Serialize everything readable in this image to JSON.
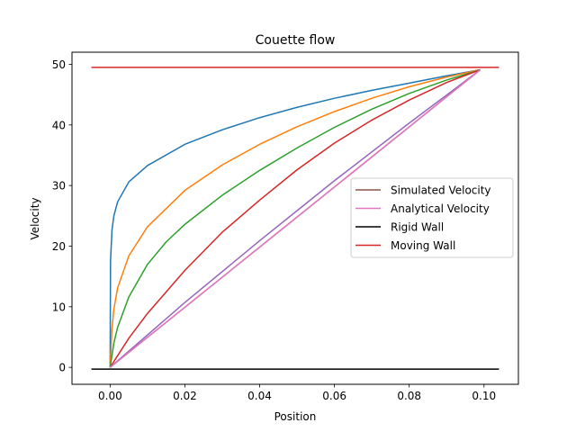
{
  "chart_data": {
    "type": "line",
    "title": "Couette flow",
    "xlabel": "Position",
    "ylabel": "Velocity",
    "xlim": [
      -0.0102,
      0.1092
    ],
    "ylim": [
      -2.8,
      52.0
    ],
    "x_ticks": [
      0.0,
      0.02,
      0.04,
      0.06,
      0.08,
      0.1
    ],
    "x_tick_labels": [
      "0.00",
      "0.02",
      "0.04",
      "0.06",
      "0.08",
      "0.10"
    ],
    "y_ticks": [
      0,
      10,
      20,
      30,
      40,
      50
    ],
    "y_tick_labels": [
      "0",
      "10",
      "20",
      "30",
      "40",
      "50"
    ],
    "grid": false,
    "legend_position": "center-right",
    "legend": [
      {
        "label": "Simulated Velocity",
        "color": "#8c564b"
      },
      {
        "label": "Analytical Velocity",
        "color": "#e377c2"
      },
      {
        "label": "Rigid Wall",
        "color": "#000000"
      },
      {
        "label": "Moving Wall",
        "color": "#d62728"
      }
    ],
    "series": [
      {
        "color": "#1f77b4",
        "x": [
          0.0,
          0.0001,
          0.0005,
          0.001,
          0.002,
          0.005,
          0.01,
          0.02,
          0.03,
          0.04,
          0.05,
          0.06,
          0.07,
          0.08,
          0.09,
          0.099
        ],
        "y": [
          0.0,
          17.5,
          22.7,
          25.0,
          27.3,
          30.6,
          33.3,
          36.8,
          39.2,
          41.2,
          42.9,
          44.4,
          45.7,
          46.9,
          48.1,
          49.1
        ]
      },
      {
        "color": "#ff7f0e",
        "x": [
          0.0,
          0.0005,
          0.001,
          0.002,
          0.005,
          0.01,
          0.02,
          0.03,
          0.04,
          0.05,
          0.06,
          0.07,
          0.08,
          0.09,
          0.099
        ],
        "y": [
          0.0,
          6.5,
          9.6,
          13.1,
          18.4,
          23.2,
          29.2,
          33.4,
          36.8,
          39.7,
          42.2,
          44.4,
          46.3,
          47.9,
          49.1
        ]
      },
      {
        "color": "#2ca02c",
        "x": [
          0.0,
          0.001,
          0.002,
          0.005,
          0.01,
          0.015,
          0.02,
          0.03,
          0.04,
          0.05,
          0.06,
          0.07,
          0.08,
          0.09,
          0.099
        ],
        "y": [
          0.0,
          4.0,
          6.6,
          11.6,
          17.0,
          20.7,
          23.6,
          28.4,
          32.5,
          36.2,
          39.6,
          42.6,
          45.2,
          47.4,
          49.1
        ]
      },
      {
        "color": "#d62728",
        "x": [
          0.0,
          0.005,
          0.01,
          0.02,
          0.03,
          0.04,
          0.05,
          0.06,
          0.07,
          0.08,
          0.09,
          0.099
        ],
        "y": [
          0.0,
          4.8,
          8.9,
          16.0,
          22.3,
          27.6,
          32.6,
          37.0,
          40.8,
          44.1,
          47.0,
          49.1
        ]
      },
      {
        "color": "#9467bd",
        "x": [
          0.0,
          0.02,
          0.04,
          0.06,
          0.08,
          0.099
        ],
        "y": [
          0.0,
          10.7,
          20.9,
          30.8,
          40.3,
          49.1
        ]
      },
      {
        "name": "Simulated Velocity",
        "color": "#8c564b",
        "x": [
          0.0,
          0.099
        ],
        "y": [
          0.0,
          49.1
        ]
      },
      {
        "name": "Analytical Velocity",
        "color": "#e377c2",
        "x": [
          0.0,
          0.099
        ],
        "y": [
          0.0,
          49.1
        ]
      },
      {
        "name": "Rigid Wall",
        "color": "#000000",
        "x": [
          -0.005,
          0.104
        ],
        "y": [
          -0.3,
          -0.3
        ]
      },
      {
        "name": "Moving Wall",
        "color": "#d62728",
        "x": [
          -0.005,
          0.104
        ],
        "y": [
          49.5,
          49.5
        ]
      }
    ]
  }
}
